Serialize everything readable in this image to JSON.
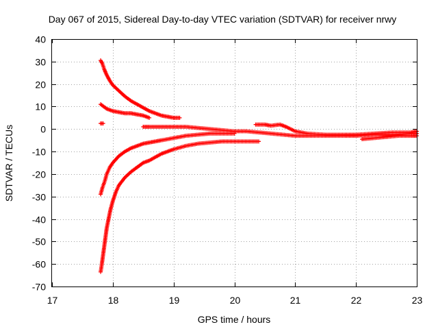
{
  "chart_data": {
    "type": "scatter",
    "title": "Day 067 of 2015, Sidereal Day-to-day VTEC variation (SDTVAR) for receiver nrwy",
    "xlabel": "GPS time / hours",
    "ylabel": "SDTVAR / TECUs",
    "xlim": [
      17,
      23
    ],
    "ylim": [
      -70,
      40
    ],
    "xticks": [
      17,
      18,
      19,
      20,
      21,
      22,
      23
    ],
    "yticks": [
      40,
      30,
      20,
      10,
      0,
      -10,
      -20,
      -30,
      -40,
      -50,
      -60,
      -70
    ],
    "grid": true,
    "marker": "+",
    "color": "#ff0000",
    "series": [
      {
        "name": "arc-upper-high",
        "points": [
          [
            17.8,
            30.5
          ],
          [
            17.83,
            29
          ],
          [
            17.86,
            26.5
          ],
          [
            17.9,
            24
          ],
          [
            17.95,
            21.5
          ],
          [
            18.0,
            19.5
          ],
          [
            18.1,
            17
          ],
          [
            18.2,
            14.5
          ],
          [
            18.3,
            12.5
          ],
          [
            18.4,
            11
          ],
          [
            18.5,
            9.5
          ],
          [
            18.6,
            8
          ],
          [
            18.7,
            7
          ],
          [
            18.8,
            6
          ],
          [
            18.9,
            5.5
          ],
          [
            19.0,
            5
          ],
          [
            19.1,
            5
          ]
        ]
      },
      {
        "name": "arc-upper-mid",
        "points": [
          [
            17.8,
            11
          ],
          [
            17.85,
            10
          ],
          [
            17.9,
            9
          ],
          [
            18.0,
            8
          ],
          [
            18.1,
            7.5
          ],
          [
            18.2,
            7
          ],
          [
            18.3,
            7
          ],
          [
            18.4,
            6.5
          ],
          [
            18.5,
            6
          ],
          [
            18.6,
            5
          ]
        ]
      },
      {
        "name": "short-stub",
        "points": [
          [
            17.8,
            2.5
          ],
          [
            17.84,
            2.5
          ]
        ]
      },
      {
        "name": "arc-near-zero",
        "points": [
          [
            18.5,
            1
          ],
          [
            18.6,
            1
          ],
          [
            18.8,
            1
          ],
          [
            19.0,
            1
          ],
          [
            19.2,
            1
          ],
          [
            19.4,
            0.5
          ],
          [
            19.6,
            0
          ],
          [
            19.8,
            -0.5
          ],
          [
            20.0,
            -1
          ],
          [
            20.2,
            -1
          ],
          [
            20.4,
            -1.5
          ],
          [
            20.6,
            -2
          ],
          [
            20.8,
            -2.5
          ],
          [
            21.0,
            -3
          ],
          [
            21.2,
            -3
          ],
          [
            21.5,
            -3
          ],
          [
            21.8,
            -3
          ],
          [
            22.0,
            -3
          ],
          [
            22.3,
            -2.5
          ],
          [
            22.6,
            -2.5
          ],
          [
            22.9,
            -2
          ],
          [
            23.0,
            -2
          ]
        ]
      },
      {
        "name": "arc-late-upper",
        "points": [
          [
            20.35,
            2
          ],
          [
            20.5,
            2
          ],
          [
            20.6,
            1.5
          ],
          [
            20.75,
            2
          ],
          [
            20.85,
            1
          ],
          [
            21.0,
            -1
          ],
          [
            21.2,
            -2
          ],
          [
            21.5,
            -2.5
          ],
          [
            21.8,
            -2.5
          ],
          [
            22.0,
            -2.5
          ],
          [
            22.3,
            -2
          ],
          [
            22.6,
            -1.5
          ],
          [
            22.9,
            -1.5
          ],
          [
            23.0,
            -1
          ]
        ]
      },
      {
        "name": "arc-late-lower",
        "points": [
          [
            22.1,
            -4.5
          ],
          [
            22.3,
            -4
          ],
          [
            22.5,
            -3.5
          ],
          [
            22.7,
            -3
          ],
          [
            22.9,
            -3
          ],
          [
            23.0,
            -3
          ]
        ]
      },
      {
        "name": "arc-lower-mid",
        "points": [
          [
            17.8,
            -29
          ],
          [
            17.83,
            -26
          ],
          [
            17.87,
            -23
          ],
          [
            17.9,
            -20
          ],
          [
            17.95,
            -17
          ],
          [
            18.0,
            -15
          ],
          [
            18.1,
            -12
          ],
          [
            18.2,
            -10
          ],
          [
            18.3,
            -8.5
          ],
          [
            18.4,
            -7.5
          ],
          [
            18.5,
            -6.5
          ],
          [
            18.6,
            -6
          ],
          [
            18.7,
            -5.5
          ],
          [
            18.8,
            -5
          ],
          [
            19.0,
            -4
          ],
          [
            19.2,
            -3
          ],
          [
            19.4,
            -2.5
          ],
          [
            19.6,
            -2
          ],
          [
            19.8,
            -2
          ],
          [
            20.0,
            -2
          ]
        ]
      },
      {
        "name": "arc-lower-deep",
        "points": [
          [
            17.8,
            -63.5
          ],
          [
            17.82,
            -60
          ],
          [
            17.84,
            -56
          ],
          [
            17.86,
            -52
          ],
          [
            17.88,
            -48
          ],
          [
            17.9,
            -44
          ],
          [
            17.93,
            -40
          ],
          [
            17.96,
            -36
          ],
          [
            18.0,
            -32
          ],
          [
            18.05,
            -28
          ],
          [
            18.1,
            -25
          ],
          [
            18.2,
            -21.5
          ],
          [
            18.3,
            -19
          ],
          [
            18.4,
            -17
          ],
          [
            18.5,
            -15
          ],
          [
            18.6,
            -14
          ],
          [
            18.7,
            -12.5
          ],
          [
            18.8,
            -11
          ],
          [
            18.9,
            -10
          ],
          [
            19.0,
            -9
          ],
          [
            19.2,
            -7.5
          ],
          [
            19.4,
            -6.5
          ],
          [
            19.6,
            -6
          ],
          [
            19.8,
            -5.5
          ],
          [
            20.0,
            -5.5
          ],
          [
            20.2,
            -5.5
          ],
          [
            20.4,
            -5.5
          ]
        ]
      }
    ]
  }
}
